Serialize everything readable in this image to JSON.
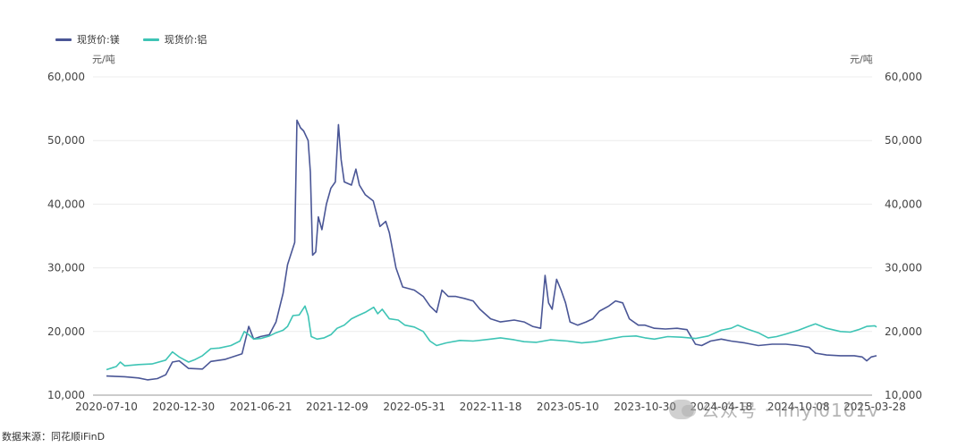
{
  "legend": {
    "mg_label": "现货价:镁",
    "al_label": "现货价:铝",
    "mg_color": "#4a5696",
    "al_color": "#3ec4b5"
  },
  "units": {
    "left": "元/吨",
    "right": "元/吨"
  },
  "source": "数据来源：同花顺iFinD",
  "watermark": "公众号 · linyi0101v",
  "chart_data": {
    "type": "line",
    "title": "",
    "xlabel": "",
    "ylabel": "元/吨",
    "ylim": [
      10000,
      60000
    ],
    "y_ticks": [
      10000,
      20000,
      30000,
      40000,
      50000,
      60000
    ],
    "y_tick_labels": [
      "10,000",
      "20,000",
      "30,000",
      "40,000",
      "50,000",
      "60,000"
    ],
    "x_ticks": [
      "2020-07-10",
      "2020-12-30",
      "2021-06-21",
      "2021-12-09",
      "2022-05-31",
      "2022-11-18",
      "2023-05-10",
      "2023-10-30",
      "2024-04-18",
      "2024-10-08",
      "2025-03-28"
    ],
    "grid": "horizontal",
    "legend_position": "top-left",
    "series": [
      {
        "name": "现货价:镁",
        "color": "#4a5696",
        "points": [
          [
            "2020-07-10",
            13000
          ],
          [
            "2020-08-20",
            12900
          ],
          [
            "2020-09-20",
            12700
          ],
          [
            "2020-10-10",
            12400
          ],
          [
            "2020-11-01",
            12600
          ],
          [
            "2020-11-20",
            13200
          ],
          [
            "2020-12-05",
            15200
          ],
          [
            "2020-12-20",
            15400
          ],
          [
            "2021-01-10",
            14200
          ],
          [
            "2021-02-10",
            14100
          ],
          [
            "2021-03-01",
            15300
          ],
          [
            "2021-04-01",
            15600
          ],
          [
            "2021-05-10",
            16500
          ],
          [
            "2021-05-25",
            20800
          ],
          [
            "2021-06-05",
            18800
          ],
          [
            "2021-06-20",
            19200
          ],
          [
            "2021-07-10",
            19500
          ],
          [
            "2021-07-25",
            21500
          ],
          [
            "2021-08-10",
            26000
          ],
          [
            "2021-08-20",
            30500
          ],
          [
            "2021-09-05",
            34000
          ],
          [
            "2021-09-10",
            53200
          ],
          [
            "2021-09-18",
            52000
          ],
          [
            "2021-09-25",
            51500
          ],
          [
            "2021-10-05",
            50000
          ],
          [
            "2021-10-10",
            45000
          ],
          [
            "2021-10-15",
            32000
          ],
          [
            "2021-10-22",
            32500
          ],
          [
            "2021-10-28",
            38000
          ],
          [
            "2021-11-05",
            36000
          ],
          [
            "2021-11-15",
            40000
          ],
          [
            "2021-11-25",
            42500
          ],
          [
            "2021-12-05",
            43500
          ],
          [
            "2021-12-12",
            52500
          ],
          [
            "2021-12-18",
            47000
          ],
          [
            "2021-12-25",
            43500
          ],
          [
            "2022-01-10",
            43000
          ],
          [
            "2022-01-20",
            45500
          ],
          [
            "2022-01-28",
            43000
          ],
          [
            "2022-02-10",
            41500
          ],
          [
            "2022-02-28",
            40500
          ],
          [
            "2022-03-15",
            36500
          ],
          [
            "2022-03-28",
            37300
          ],
          [
            "2022-04-05",
            35500
          ],
          [
            "2022-04-20",
            30000
          ],
          [
            "2022-05-05",
            27000
          ],
          [
            "2022-05-31",
            26500
          ],
          [
            "2022-06-20",
            25500
          ],
          [
            "2022-07-05",
            24000
          ],
          [
            "2022-07-20",
            23000
          ],
          [
            "2022-08-01",
            26500
          ],
          [
            "2022-08-15",
            25500
          ],
          [
            "2022-09-01",
            25500
          ],
          [
            "2022-09-20",
            25200
          ],
          [
            "2022-10-10",
            24800
          ],
          [
            "2022-10-25",
            23500
          ],
          [
            "2022-11-18",
            22000
          ],
          [
            "2022-12-10",
            21500
          ],
          [
            "2023-01-10",
            21800
          ],
          [
            "2023-02-01",
            21500
          ],
          [
            "2023-02-20",
            20800
          ],
          [
            "2023-03-10",
            20500
          ],
          [
            "2023-03-20",
            28800
          ],
          [
            "2023-03-28",
            24500
          ],
          [
            "2023-04-05",
            23500
          ],
          [
            "2023-04-15",
            28200
          ],
          [
            "2023-04-25",
            26500
          ],
          [
            "2023-05-05",
            24500
          ],
          [
            "2023-05-15",
            21500
          ],
          [
            "2023-06-01",
            21000
          ],
          [
            "2023-06-20",
            21500
          ],
          [
            "2023-07-05",
            22000
          ],
          [
            "2023-07-20",
            23200
          ],
          [
            "2023-08-10",
            24000
          ],
          [
            "2023-08-25",
            24800
          ],
          [
            "2023-09-10",
            24500
          ],
          [
            "2023-09-25",
            22000
          ],
          [
            "2023-10-15",
            21000
          ],
          [
            "2023-10-30",
            21000
          ],
          [
            "2023-11-20",
            20500
          ],
          [
            "2023-12-15",
            20400
          ],
          [
            "2024-01-10",
            20500
          ],
          [
            "2024-02-01",
            20300
          ],
          [
            "2024-02-20",
            18000
          ],
          [
            "2024-03-05",
            17800
          ],
          [
            "2024-03-25",
            18500
          ],
          [
            "2024-04-18",
            18800
          ],
          [
            "2024-05-10",
            18500
          ],
          [
            "2024-06-10",
            18200
          ],
          [
            "2024-07-10",
            17800
          ],
          [
            "2024-08-10",
            18000
          ],
          [
            "2024-09-10",
            18000
          ],
          [
            "2024-10-08",
            17800
          ],
          [
            "2024-11-01",
            17500
          ],
          [
            "2024-11-15",
            16600
          ],
          [
            "2024-12-10",
            16300
          ],
          [
            "2025-01-10",
            16200
          ],
          [
            "2025-02-10",
            16200
          ],
          [
            "2025-02-28",
            16000
          ],
          [
            "2025-03-10",
            15400
          ],
          [
            "2025-03-20",
            16000
          ],
          [
            "2025-04-01",
            16200
          ]
        ]
      },
      {
        "name": "现货价:铝",
        "color": "#3ec4b5",
        "points": [
          [
            "2020-07-10",
            14000
          ],
          [
            "2020-08-01",
            14500
          ],
          [
            "2020-08-10",
            15200
          ],
          [
            "2020-08-20",
            14600
          ],
          [
            "2020-09-20",
            14800
          ],
          [
            "2020-10-20",
            14900
          ],
          [
            "2020-11-20",
            15500
          ],
          [
            "2020-12-05",
            16800
          ],
          [
            "2020-12-20",
            16000
          ],
          [
            "2021-01-10",
            15200
          ],
          [
            "2021-01-25",
            15600
          ],
          [
            "2021-02-10",
            16200
          ],
          [
            "2021-03-01",
            17300
          ],
          [
            "2021-03-20",
            17400
          ],
          [
            "2021-04-15",
            17800
          ],
          [
            "2021-05-05",
            18500
          ],
          [
            "2021-05-15",
            20000
          ],
          [
            "2021-05-25",
            19500
          ],
          [
            "2021-06-05",
            18800
          ],
          [
            "2021-06-21",
            18900
          ],
          [
            "2021-07-10",
            19300
          ],
          [
            "2021-07-25",
            19800
          ],
          [
            "2021-08-10",
            20200
          ],
          [
            "2021-08-20",
            20800
          ],
          [
            "2021-09-01",
            22500
          ],
          [
            "2021-09-15",
            22600
          ],
          [
            "2021-09-28",
            24000
          ],
          [
            "2021-10-05",
            22500
          ],
          [
            "2021-10-12",
            19200
          ],
          [
            "2021-10-25",
            18800
          ],
          [
            "2021-11-10",
            19000
          ],
          [
            "2021-11-25",
            19500
          ],
          [
            "2021-12-09",
            20500
          ],
          [
            "2021-12-25",
            21000
          ],
          [
            "2022-01-10",
            22000
          ],
          [
            "2022-01-25",
            22500
          ],
          [
            "2022-02-10",
            23000
          ],
          [
            "2022-03-01",
            23800
          ],
          [
            "2022-03-10",
            22800
          ],
          [
            "2022-03-20",
            23500
          ],
          [
            "2022-04-05",
            22000
          ],
          [
            "2022-04-25",
            21800
          ],
          [
            "2022-05-10",
            21000
          ],
          [
            "2022-05-31",
            20700
          ],
          [
            "2022-06-20",
            20000
          ],
          [
            "2022-07-05",
            18500
          ],
          [
            "2022-07-20",
            17800
          ],
          [
            "2022-08-10",
            18200
          ],
          [
            "2022-09-10",
            18600
          ],
          [
            "2022-10-10",
            18500
          ],
          [
            "2022-11-18",
            18800
          ],
          [
            "2022-12-10",
            19000
          ],
          [
            "2023-01-10",
            18700
          ],
          [
            "2023-02-01",
            18400
          ],
          [
            "2023-03-01",
            18300
          ],
          [
            "2023-04-01",
            18700
          ],
          [
            "2023-05-10",
            18500
          ],
          [
            "2023-06-10",
            18200
          ],
          [
            "2023-07-10",
            18400
          ],
          [
            "2023-08-10",
            18800
          ],
          [
            "2023-09-10",
            19200
          ],
          [
            "2023-10-10",
            19300
          ],
          [
            "2023-10-30",
            19000
          ],
          [
            "2023-11-20",
            18800
          ],
          [
            "2023-12-20",
            19200
          ],
          [
            "2024-01-20",
            19100
          ],
          [
            "2024-02-20",
            18900
          ],
          [
            "2024-03-20",
            19300
          ],
          [
            "2024-04-18",
            20200
          ],
          [
            "2024-05-10",
            20500
          ],
          [
            "2024-05-25",
            21000
          ],
          [
            "2024-06-15",
            20400
          ],
          [
            "2024-07-10",
            19800
          ],
          [
            "2024-08-01",
            19000
          ],
          [
            "2024-08-20",
            19200
          ],
          [
            "2024-09-10",
            19600
          ],
          [
            "2024-10-08",
            20200
          ],
          [
            "2024-10-30",
            20800
          ],
          [
            "2024-11-15",
            21200
          ],
          [
            "2024-12-10",
            20500
          ],
          [
            "2025-01-10",
            20000
          ],
          [
            "2025-02-01",
            19900
          ],
          [
            "2025-02-20",
            20300
          ],
          [
            "2025-03-10",
            20800
          ],
          [
            "2025-03-28",
            20900
          ],
          [
            "2025-04-01",
            20700
          ]
        ]
      }
    ]
  }
}
